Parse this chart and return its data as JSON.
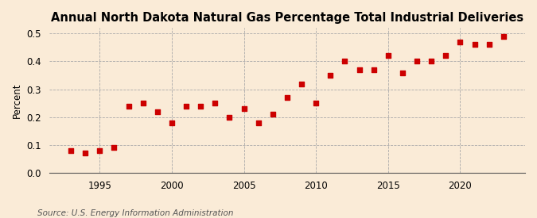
{
  "title": "Annual North Dakota Natural Gas Percentage Total Industrial Deliveries",
  "ylabel": "Percent",
  "source": "Source: U.S. Energy Information Administration",
  "years": [
    1993,
    1994,
    1995,
    1996,
    1997,
    1998,
    1999,
    2000,
    2001,
    2002,
    2003,
    2004,
    2005,
    2006,
    2007,
    2008,
    2009,
    2010,
    2011,
    2012,
    2013,
    2014,
    2015,
    2016,
    2017,
    2018,
    2019,
    2020,
    2021,
    2022,
    2023
  ],
  "values": [
    0.08,
    0.07,
    0.08,
    0.09,
    0.24,
    0.25,
    0.22,
    0.18,
    0.24,
    0.24,
    0.25,
    0.2,
    0.23,
    0.18,
    0.21,
    0.27,
    0.32,
    0.25,
    0.35,
    0.4,
    0.37,
    0.37,
    0.42,
    0.36,
    0.4,
    0.4,
    0.42,
    0.47,
    0.46,
    0.46,
    0.49
  ],
  "marker_color": "#cc0000",
  "marker_size": 14,
  "background_color": "#faebd7",
  "plot_background_color": "#faebd7",
  "grid_color": "#aaaaaa",
  "ylim": [
    0.0,
    0.52
  ],
  "yticks": [
    0.0,
    0.1,
    0.2,
    0.3,
    0.4,
    0.5
  ],
  "xtick_positions": [
    1995,
    2000,
    2005,
    2010,
    2015,
    2020
  ],
  "title_fontsize": 10.5,
  "label_fontsize": 8.5,
  "source_fontsize": 7.5
}
